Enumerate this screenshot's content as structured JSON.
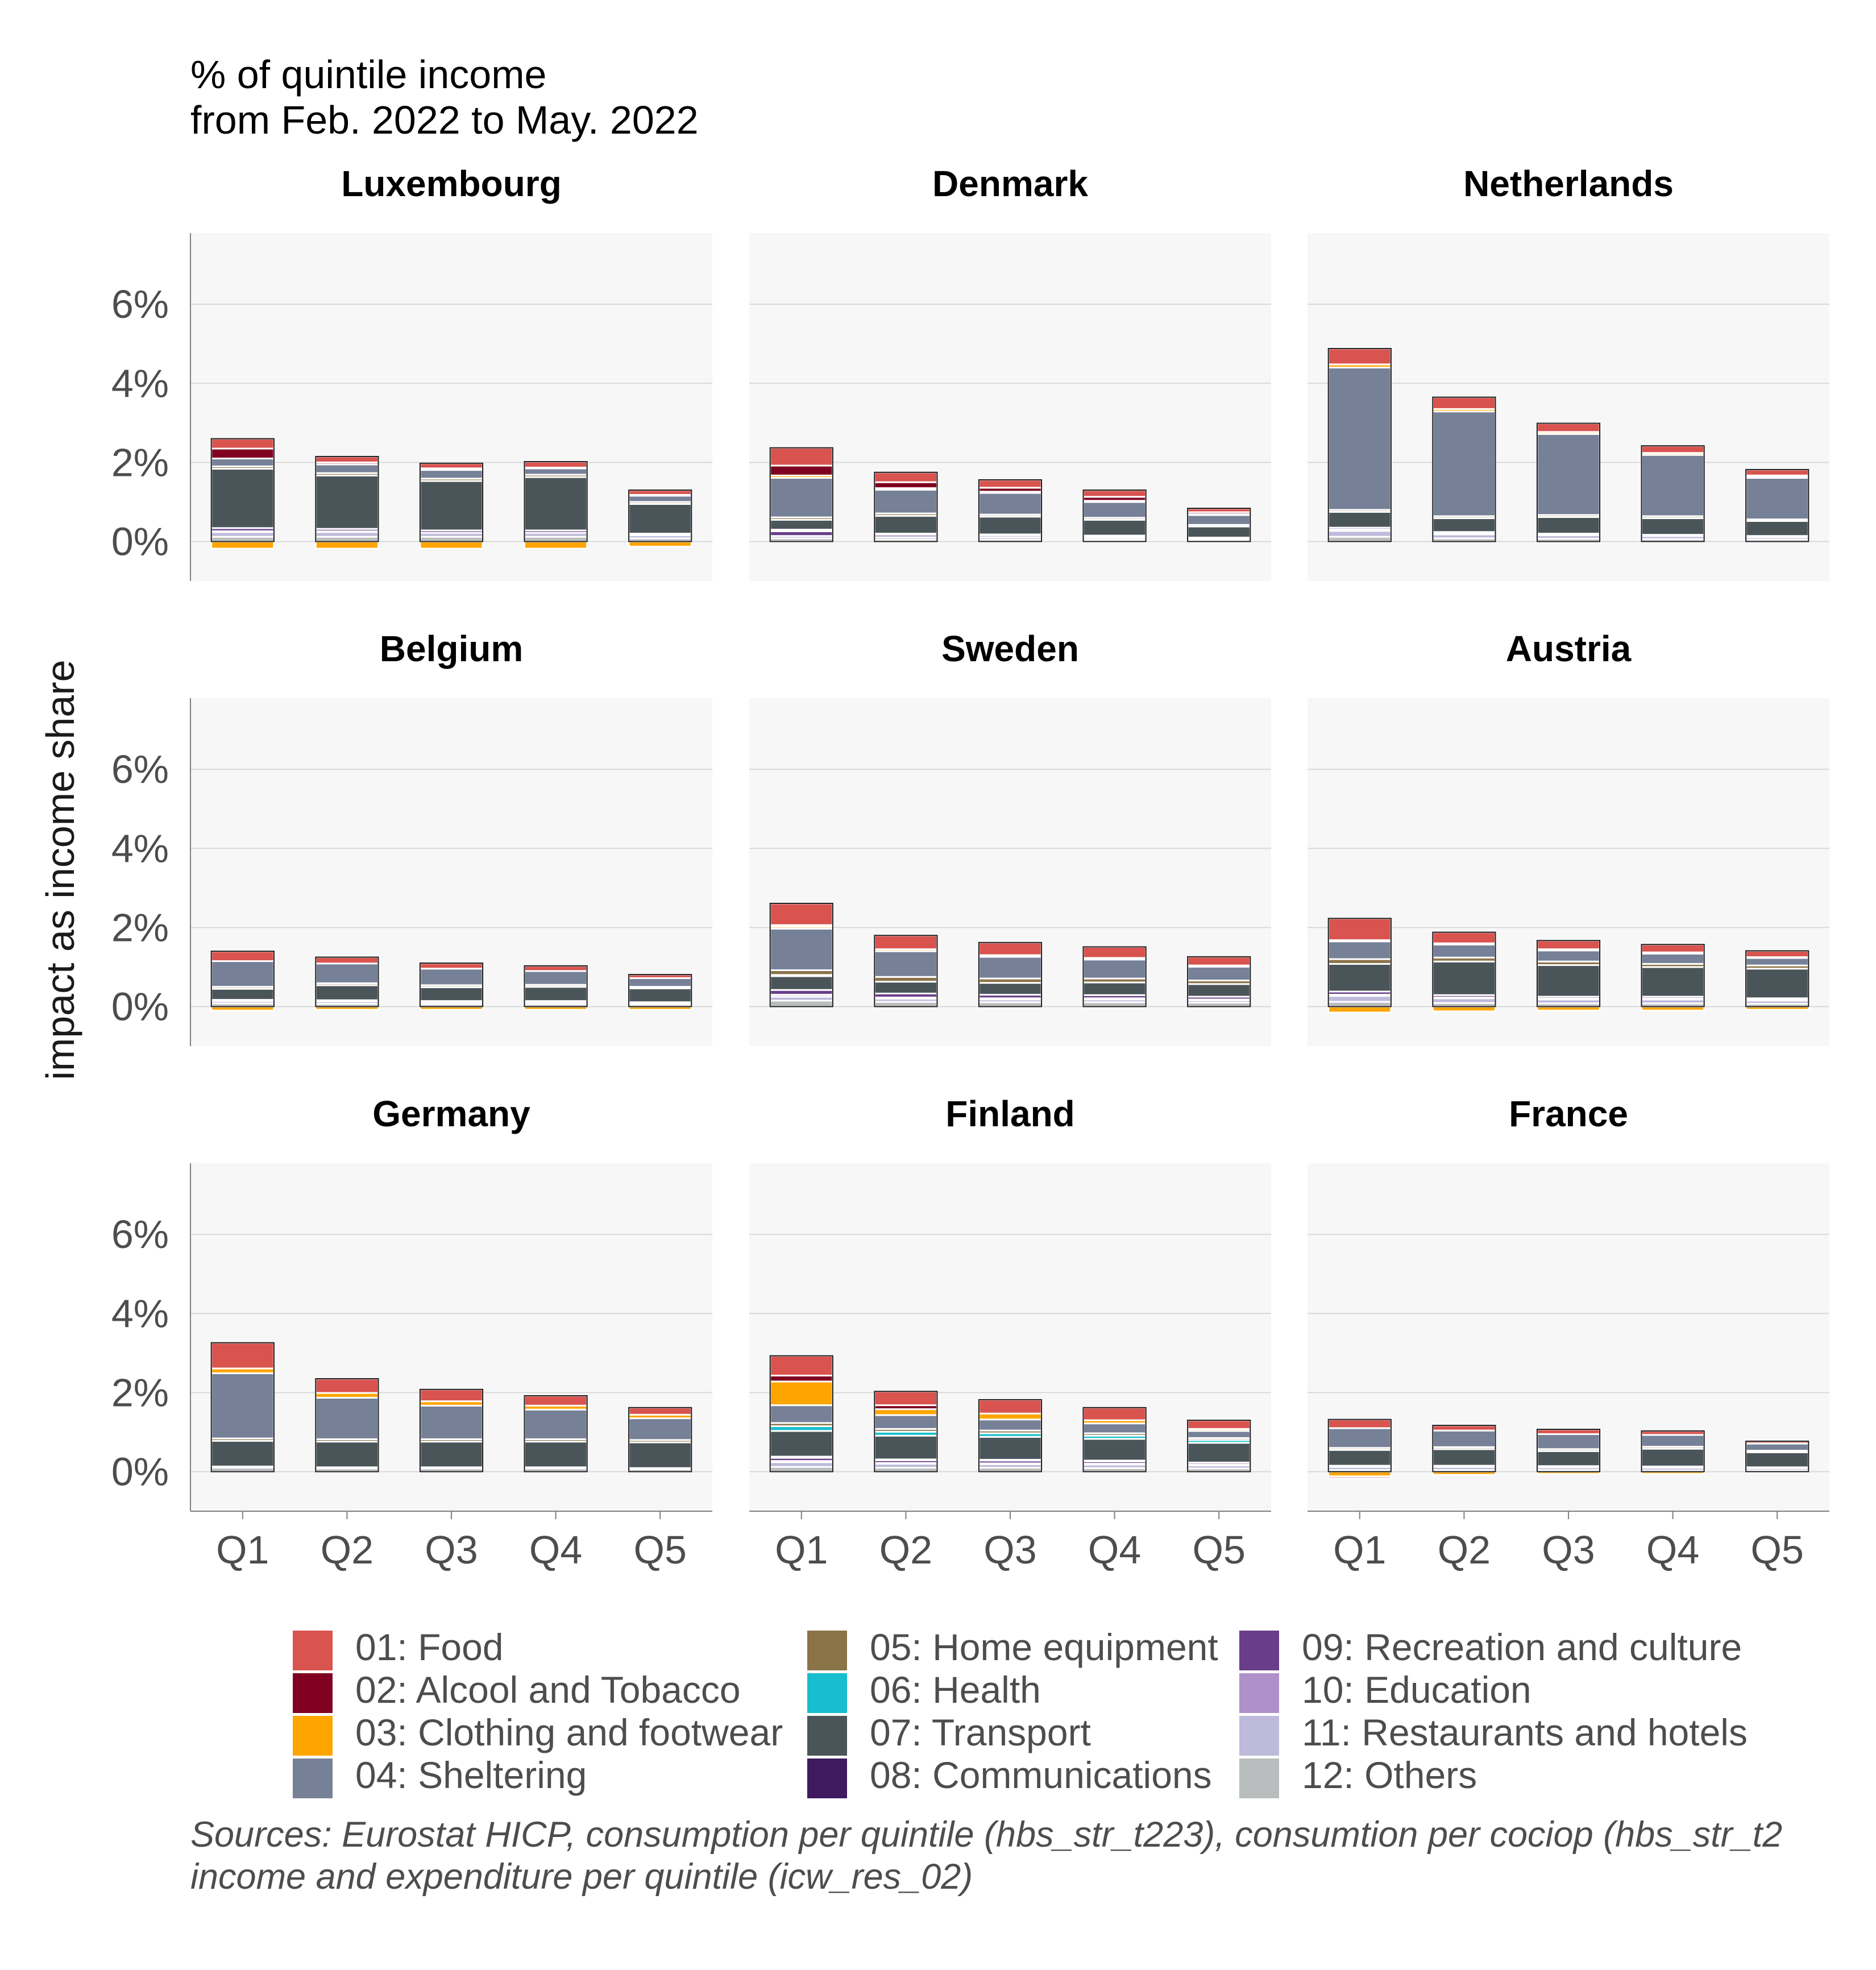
{
  "chart_data": {
    "type": "bar",
    "stacked": true,
    "title": "% of quintile income",
    "subtitle": "from Feb. 2022 to May. 2022",
    "ylabel": "impact as income share",
    "xlabel": "",
    "categories": [
      "Q1",
      "Q2",
      "Q3",
      "Q4",
      "Q5"
    ],
    "ylim": [
      -0.01,
      0.078
    ],
    "yticks": [
      0,
      0.02,
      0.04,
      0.06
    ],
    "ytick_labels": [
      "0%",
      "2%",
      "4%",
      "6%"
    ],
    "grid": true,
    "legend_position": "bottom",
    "legend": [
      {
        "key": "01",
        "label": "01: Food",
        "color": "#D9534F"
      },
      {
        "key": "02",
        "label": "02: Alcool and Tobacco",
        "color": "#7F0020"
      },
      {
        "key": "03",
        "label": "03: Clothing and footwear",
        "color": "#FFA500"
      },
      {
        "key": "04",
        "label": "04: Sheltering",
        "color": "#768198"
      },
      {
        "key": "05",
        "label": "05: Home equipment",
        "color": "#8B7348"
      },
      {
        "key": "06",
        "label": "06: Health",
        "color": "#17BECF"
      },
      {
        "key": "07",
        "label": "07: Transport",
        "color": "#4A5559"
      },
      {
        "key": "08",
        "label": "08: Communications",
        "color": "#3F1A5E"
      },
      {
        "key": "09",
        "label": "09: Recreation and culture",
        "color": "#6A3D8A"
      },
      {
        "key": "10",
        "label": "10: Education",
        "color": "#B090CA"
      },
      {
        "key": "11",
        "label": "11: Restaurants and hotels",
        "color": "#BEBADA"
      },
      {
        "key": "12",
        "label": "12: Others",
        "color": "#BABDBD"
      }
    ],
    "panels": [
      {
        "country": "Luxembourg",
        "bars": [
          {
            "neg": {
              "03": -0.0018
            },
            "pos": {
              "12": 0.0012,
              "11": 0.0012,
              "10": 0.0002,
              "09": 0.0008,
              "07": 0.015,
              "05": 0.0006,
              "04": 0.002,
              "01": 0.0025,
              "02": 0.0025
            }
          },
          {
            "neg": {
              "03": -0.0018
            },
            "pos": {
              "12": 0.0012,
              "11": 0.0012,
              "10": 0.0002,
              "09": 0.0006,
              "07": 0.0135,
              "05": 0.0006,
              "04": 0.0022,
              "01": 0.0015,
              "02": 0.0005
            }
          },
          {
            "neg": {
              "03": -0.0018
            },
            "pos": {
              "12": 0.0012,
              "11": 0.001,
              "09": 0.0006,
              "07": 0.0125,
              "05": 0.0006,
              "04": 0.0022,
              "01": 0.0013,
              "02": 0.0004
            }
          },
          {
            "neg": {
              "03": -0.0018
            },
            "pos": {
              "12": 0.0012,
              "11": 0.001,
              "09": 0.0006,
              "07": 0.0135,
              "05": 0.0006,
              "04": 0.0016,
              "01": 0.0015,
              "02": 0.0002
            }
          },
          {
            "neg": {
              "03": -0.0013
            },
            "pos": {
              "12": 0.0008,
              "11": 0.0008,
              "09": 0.0004,
              "07": 0.0075,
              "05": 0.0005,
              "04": 0.0016,
              "01": 0.0012,
              "02": 0.0002
            }
          }
        ]
      },
      {
        "country": "Denmark",
        "bars": [
          {
            "neg": {},
            "pos": {
              "12": 0.0008,
              "11": 0.0006,
              "09": 0.0012,
              "08": 0.0004,
              "07": 0.0025,
              "05": 0.0006,
              "04": 0.01,
              "03": 0.0006,
              "02": 0.0025,
              "01": 0.0045
            }
          },
          {
            "neg": {},
            "pos": {
              "12": 0.0005,
              "11": 0.0006,
              "09": 0.0006,
              "08": 0.0003,
              "07": 0.0045,
              "05": 0.0006,
              "04": 0.006,
              "03": 0.0004,
              "02": 0.0015,
              "01": 0.0025
            }
          },
          {
            "neg": {},
            "pos": {
              "12": 0.0005,
              "11": 0.0006,
              "09": 0.0005,
              "08": 0.0002,
              "07": 0.0045,
              "05": 0.0005,
              "04": 0.0055,
              "03": 0.0003,
              "02": 0.001,
              "01": 0.002
            }
          },
          {
            "neg": {},
            "pos": {
              "12": 0.0004,
              "11": 0.0005,
              "09": 0.0004,
              "08": 0.0002,
              "07": 0.004,
              "05": 0.0005,
              "04": 0.004,
              "03": 0.0003,
              "02": 0.001,
              "01": 0.0017
            }
          },
          {
            "neg": {},
            "pos": {
              "12": 0.0003,
              "11": 0.0004,
              "09": 0.0003,
              "07": 0.0028,
              "05": 0.0004,
              "04": 0.0025,
              "03": 0.0002,
              "02": 0.0005,
              "01": 0.001
            }
          }
        ]
      },
      {
        "country": "Netherlands",
        "bars": [
          {
            "neg": {},
            "pos": {
              "12": 0.0012,
              "11": 0.0015,
              "10": 0.0003,
              "09": 0.0005,
              "07": 0.004,
              "05": 0.0005,
              "04": 0.036,
              "03": 0.0008,
              "01": 0.004
            }
          },
          {
            "neg": {},
            "pos": {
              "12": 0.0008,
              "11": 0.001,
              "10": 0.0002,
              "09": 0.0004,
              "07": 0.0035,
              "05": 0.0005,
              "04": 0.0265,
              "03": 0.0006,
              "01": 0.003
            }
          },
          {
            "neg": {},
            "pos": {
              "12": 0.0007,
              "11": 0.0009,
              "09": 0.0004,
              "07": 0.0042,
              "05": 0.0005,
              "04": 0.0205,
              "03": 0.0005,
              "01": 0.0022
            }
          },
          {
            "neg": {},
            "pos": {
              "12": 0.0006,
              "11": 0.0008,
              "09": 0.0003,
              "07": 0.0042,
              "05": 0.0005,
              "04": 0.0155,
              "03": 0.0005,
              "01": 0.0018
            }
          },
          {
            "neg": {},
            "pos": {
              "12": 0.0005,
              "11": 0.0006,
              "09": 0.0003,
              "07": 0.0038,
              "05": 0.0004,
              "04": 0.0105,
              "03": 0.0004,
              "01": 0.0015,
              "02": 0.0002
            }
          }
        ]
      },
      {
        "country": "Belgium",
        "bars": [
          {
            "neg": {
              "03": -0.001
            },
            "pos": {
              "12": 0.0008,
              "11": 0.0006,
              "09": 0.0003,
              "07": 0.0028,
              "05": 0.0005,
              "04": 0.0065,
              "01": 0.0025
            }
          },
          {
            "neg": {
              "03": -0.0008
            },
            "pos": {
              "12": 0.0007,
              "11": 0.0006,
              "09": 0.0003,
              "07": 0.0038,
              "05": 0.0005,
              "04": 0.005,
              "01": 0.0016
            }
          },
          {
            "neg": {
              "03": -0.0008
            },
            "pos": {
              "12": 0.0006,
              "11": 0.0005,
              "09": 0.0003,
              "07": 0.0035,
              "05": 0.0005,
              "04": 0.0042,
              "01": 0.0014
            }
          },
          {
            "neg": {
              "03": -0.0008
            },
            "pos": {
              "12": 0.0006,
              "11": 0.0005,
              "09": 0.0003,
              "07": 0.0036,
              "05": 0.0005,
              "04": 0.0035,
              "01": 0.0013
            }
          },
          {
            "neg": {
              "03": -0.0008
            },
            "pos": {
              "12": 0.0005,
              "11": 0.0004,
              "09": 0.0002,
              "07": 0.0035,
              "05": 0.0004,
              "04": 0.0022,
              "01": 0.0009
            }
          }
        ]
      },
      {
        "country": "Sweden",
        "bars": [
          {
            "neg": {},
            "pos": {
              "12": 0.0015,
              "11": 0.001,
              "10": 0.0005,
              "09": 0.0012,
              "07": 0.0035,
              "06": 0.0003,
              "05": 0.0012,
              "04": 0.0105,
              "03": 0.0005,
              "01": 0.0055,
              "02": 0.0004
            }
          },
          {
            "neg": {},
            "pos": {
              "12": 0.0012,
              "11": 0.0008,
              "10": 0.0003,
              "09": 0.001,
              "07": 0.003,
              "05": 0.0012,
              "04": 0.0065,
              "03": 0.0005,
              "01": 0.0035
            }
          },
          {
            "neg": {},
            "pos": {
              "12": 0.0011,
              "11": 0.0007,
              "10": 0.0003,
              "09": 0.0009,
              "07": 0.003,
              "05": 0.0011,
              "04": 0.0055,
              "03": 0.0004,
              "01": 0.0032
            }
          },
          {
            "neg": {},
            "pos": {
              "12": 0.0011,
              "11": 0.0007,
              "10": 0.0003,
              "09": 0.0008,
              "07": 0.0032,
              "05": 0.001,
              "04": 0.0048,
              "03": 0.0004,
              "01": 0.0028
            }
          },
          {
            "neg": {},
            "pos": {
              "12": 0.001,
              "11": 0.0006,
              "10": 0.0002,
              "09": 0.0007,
              "07": 0.0032,
              "05": 0.0009,
              "04": 0.0035,
              "03": 0.0003,
              "01": 0.0022
            }
          }
        ]
      },
      {
        "country": "Austria",
        "bars": [
          {
            "neg": {
              "03": -0.0015
            },
            "pos": {
              "12": 0.0012,
              "11": 0.0015,
              "10": 0.0003,
              "09": 0.0008,
              "07": 0.007,
              "05": 0.0012,
              "04": 0.0045,
              "01": 0.0055,
              "02": 0.0003
            }
          },
          {
            "neg": {
              "03": -0.0012
            },
            "pos": {
              "12": 0.0009,
              "11": 0.0012,
              "10": 0.0002,
              "09": 0.0006,
              "07": 0.0085,
              "05": 0.001,
              "04": 0.0033,
              "01": 0.0028,
              "02": 0.0003
            }
          },
          {
            "neg": {
              "03": -0.001
            },
            "pos": {
              "12": 0.0008,
              "11": 0.001,
              "10": 0.0002,
              "09": 0.0005,
              "07": 0.008,
              "05": 0.0009,
              "04": 0.0028,
              "01": 0.0022,
              "02": 0.0003
            }
          },
          {
            "neg": {
              "03": -0.001
            },
            "pos": {
              "12": 0.0008,
              "11": 0.001,
              "10": 0.0002,
              "09": 0.0005,
              "07": 0.0075,
              "05": 0.0008,
              "04": 0.0026,
              "01": 0.002,
              "02": 0.0003
            }
          },
          {
            "neg": {
              "03": -0.0008
            },
            "pos": {
              "12": 0.0007,
              "11": 0.0008,
              "10": 0.0002,
              "09": 0.0004,
              "07": 0.0075,
              "05": 0.0008,
              "04": 0.0019,
              "01": 0.0016,
              "02": 0.0002
            }
          }
        ]
      },
      {
        "country": "Germany",
        "bars": [
          {
            "neg": {},
            "pos": {
              "12": 0.001,
              "11": 0.0003,
              "07": 0.0065,
              "05": 0.0006,
              "04": 0.0165,
              "03": 0.0012,
              "01": 0.0065
            }
          },
          {
            "neg": {},
            "pos": {
              "12": 0.0008,
              "11": 0.0003,
              "07": 0.0065,
              "05": 0.0006,
              "04": 0.0105,
              "03": 0.0012,
              "01": 0.0036
            }
          },
          {
            "neg": {},
            "pos": {
              "12": 0.0008,
              "11": 0.0003,
              "07": 0.0065,
              "05": 0.0006,
              "04": 0.0085,
              "03": 0.0011,
              "01": 0.003
            }
          },
          {
            "neg": {},
            "pos": {
              "12": 0.0008,
              "11": 0.0003,
              "07": 0.0065,
              "05": 0.0006,
              "04": 0.0075,
              "03": 0.001,
              "01": 0.0025
            }
          },
          {
            "neg": {},
            "pos": {
              "12": 0.0006,
              "11": 0.0003,
              "07": 0.0065,
              "05": 0.0006,
              "04": 0.0055,
              "03": 0.0009,
              "01": 0.0018
            }
          }
        ]
      },
      {
        "country": "Finland",
        "bars": [
          {
            "neg": {},
            "pos": {
              "12": 0.0012,
              "11": 0.0012,
              "10": 0.0003,
              "09": 0.0008,
              "08": 0.0003,
              "07": 0.0065,
              "06": 0.0012,
              "05": 0.0008,
              "04": 0.0045,
              "02": 0.0015,
              "01": 0.005,
              "03": 0.006
            }
          },
          {
            "neg": {},
            "pos": {
              "12": 0.001,
              "11": 0.001,
              "10": 0.0002,
              "09": 0.0007,
              "08": 0.0002,
              "07": 0.006,
              "06": 0.001,
              "05": 0.0007,
              "04": 0.0035,
              "02": 0.001,
              "01": 0.0035,
              "03": 0.0015
            }
          },
          {
            "neg": {},
            "pos": {
              "12": 0.001,
              "11": 0.0009,
              "10": 0.0002,
              "09": 0.0007,
              "08": 0.0002,
              "07": 0.0058,
              "06": 0.0009,
              "05": 0.0007,
              "04": 0.0028,
              "01": 0.0035,
              "03": 0.0015
            }
          },
          {
            "neg": {},
            "pos": {
              "12": 0.0009,
              "11": 0.0009,
              "10": 0.0002,
              "09": 0.0006,
              "08": 0.0002,
              "07": 0.0055,
              "06": 0.0008,
              "05": 0.0006,
              "04": 0.0025,
              "01": 0.0032,
              "03": 0.0008
            }
          },
          {
            "neg": {},
            "pos": {
              "12": 0.0008,
              "11": 0.0008,
              "10": 0.0002,
              "09": 0.0005,
              "07": 0.005,
              "06": 0.0007,
              "05": 0.0005,
              "04": 0.0018,
              "01": 0.0022,
              "03": 0.0005
            }
          }
        ]
      },
      {
        "country": "France",
        "bars": [
          {
            "neg": {
              "03": -0.0012,
              "01": -0.0005
            },
            "pos": {
              "12": 0.0004,
              "11": 0.0008,
              "09": 0.0003,
              "07": 0.004,
              "05": 0.0005,
              "04": 0.005,
              "01": 0.0022
            }
          },
          {
            "neg": {
              "03": -0.0008
            },
            "pos": {
              "12": 0.0004,
              "11": 0.0008,
              "09": 0.0003,
              "07": 0.0042,
              "05": 0.0005,
              "04": 0.0042,
              "01": 0.0013
            }
          },
          {
            "neg": {
              "03": -0.0006
            },
            "pos": {
              "12": 0.0004,
              "11": 0.0007,
              "09": 0.0003,
              "07": 0.0038,
              "05": 0.0005,
              "04": 0.0038,
              "01": 0.0012
            }
          },
          {
            "neg": {
              "03": -0.0006
            },
            "pos": {
              "12": 0.0003,
              "11": 0.0007,
              "09": 0.0003,
              "07": 0.0045,
              "05": 0.0005,
              "04": 0.003,
              "01": 0.001
            }
          },
          {
            "neg": {
              "03": -0.0004
            },
            "pos": {
              "12": 0.0003,
              "11": 0.0006,
              "09": 0.0002,
              "07": 0.0038,
              "05": 0.0004,
              "04": 0.0018,
              "01": 0.0006
            }
          }
        ]
      }
    ]
  },
  "source": {
    "line1": "Sources: Eurostat HICP, consumption per quintile (hbs_str_t223), consumtion per cociop (hbs_str_t2",
    "line2": "income and expenditure per quintile (icw_res_02)"
  }
}
